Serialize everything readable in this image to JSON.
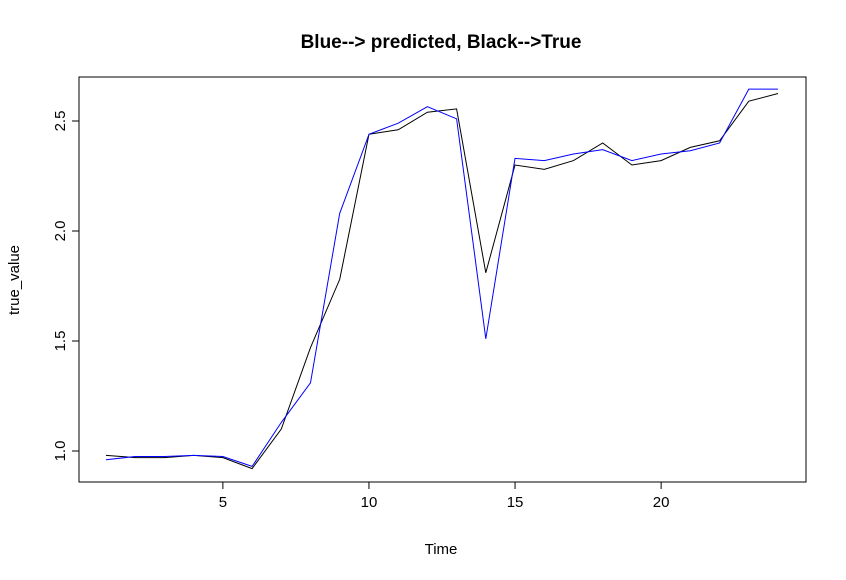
{
  "chart_data": {
    "type": "line",
    "title": "Blue--> predicted, Black-->True",
    "xlabel": "Time",
    "ylabel": "true_value",
    "xlim": [
      0,
      25
    ],
    "ylim": [
      0.85,
      2.7
    ],
    "xticks": [
      5,
      10,
      15,
      20
    ],
    "yticks": [
      1.0,
      1.5,
      2.0,
      2.5
    ],
    "ytick_labels": [
      "1.0",
      "1.5",
      "2.0",
      "2.5"
    ],
    "grid": false,
    "x": [
      1,
      2,
      3,
      4,
      5,
      6,
      7,
      8,
      9,
      10,
      11,
      12,
      13,
      14,
      15,
      16,
      17,
      18,
      19,
      20,
      21,
      22,
      23,
      24
    ],
    "series": [
      {
        "color": "#000000",
        "values": [
          0.98,
          0.97,
          0.97,
          0.98,
          0.97,
          0.92,
          1.1,
          1.47,
          1.78,
          2.44,
          2.46,
          2.54,
          2.555,
          1.81,
          2.3,
          2.28,
          2.32,
          2.4,
          2.3,
          2.32,
          2.38,
          2.41,
          2.59,
          2.625
        ]
      },
      {
        "color": "#0000ff",
        "values": [
          0.96,
          0.975,
          0.975,
          0.98,
          0.975,
          0.93,
          1.13,
          1.31,
          2.08,
          2.44,
          2.49,
          2.565,
          2.51,
          1.51,
          2.33,
          2.32,
          2.35,
          2.37,
          2.32,
          2.35,
          2.365,
          2.4,
          2.645,
          2.645
        ]
      }
    ]
  }
}
